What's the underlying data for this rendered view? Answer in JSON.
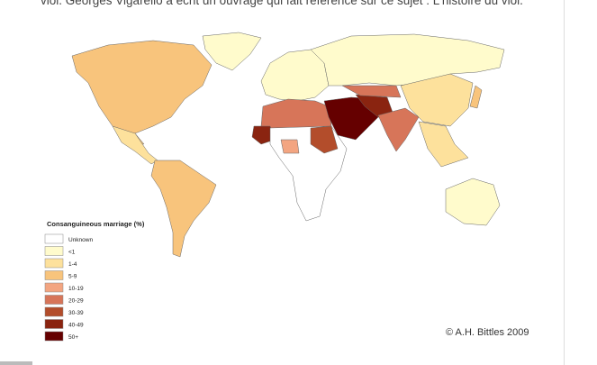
{
  "article": {
    "text": "viol. Georges Vigarello a écrit un ouvrage qui fait référence sur ce sujet : L'histoire du viol."
  },
  "map": {
    "legend_title": "Consanguineous marriage (%)",
    "legend": [
      {
        "label": "Unknown",
        "color": "#ffffff"
      },
      {
        "label": "<1",
        "color": "#fffbcc"
      },
      {
        "label": "1-4",
        "color": "#fde19c"
      },
      {
        "label": "5-9",
        "color": "#f8c47c"
      },
      {
        "label": "10-19",
        "color": "#f3a581"
      },
      {
        "label": "20-29",
        "color": "#d77559"
      },
      {
        "label": "30-39",
        "color": "#b34d2b"
      },
      {
        "label": "40-49",
        "color": "#8a2410"
      },
      {
        "label": "50+",
        "color": "#650000"
      }
    ],
    "credit": "© A.H. Bittles 2009"
  }
}
